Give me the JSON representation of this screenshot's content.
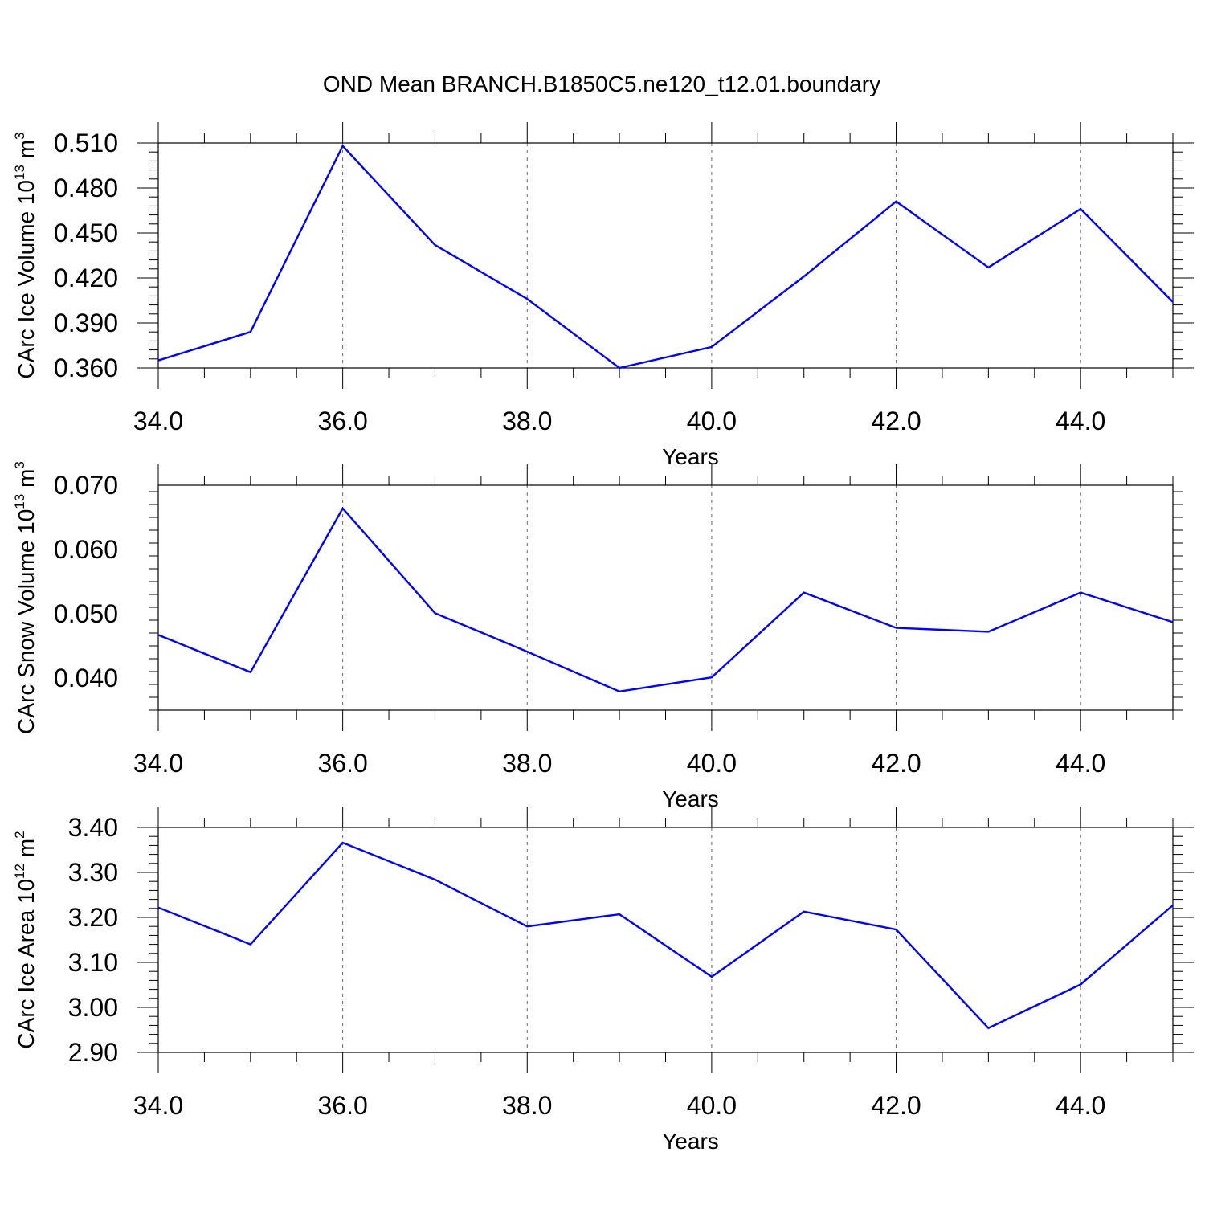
{
  "title": "OND Mean BRANCH.B1850C5.ne120_t12.01.boundary",
  "colors": {
    "series": "#0000ff",
    "axis": "#000000",
    "grid": "#666666"
  },
  "chart_data": [
    {
      "type": "line",
      "title": "",
      "xlabel": "Years",
      "ylabel": {
        "prefix": "CArc Ice Volume 10",
        "exponent": "13",
        "unit": " m",
        "unit_exponent": "3"
      },
      "x": [
        34,
        35,
        36,
        37,
        38,
        39,
        40,
        41,
        42,
        43,
        44,
        45
      ],
      "xlim": [
        34,
        45
      ],
      "xticks": [
        "34.0",
        "36.0",
        "38.0",
        "40.0",
        "42.0",
        "44.0"
      ],
      "ylim": [
        0.36,
        0.51
      ],
      "yticks": [
        "0.360",
        "0.390",
        "0.420",
        "0.450",
        "0.480",
        "0.510"
      ],
      "series": [
        {
          "values": [
            0.365,
            0.384,
            0.508,
            0.442,
            0.406,
            0.36,
            0.374,
            0.421,
            0.471,
            0.427,
            0.466,
            0.404
          ]
        }
      ],
      "grid": "x-dashed",
      "legend": "none"
    },
    {
      "type": "line",
      "title": "",
      "xlabel": "Years",
      "ylabel": {
        "prefix": "CArc Snow Volume 10",
        "exponent": "13",
        "unit": " m",
        "unit_exponent": "3"
      },
      "x": [
        34,
        35,
        36,
        37,
        38,
        39,
        40,
        41,
        42,
        43,
        44,
        45
      ],
      "xlim": [
        34,
        45
      ],
      "xticks": [
        "34.0",
        "36.0",
        "38.0",
        "40.0",
        "42.0",
        "44.0"
      ],
      "ylim": [
        0.035,
        0.07
      ],
      "yticks": [
        "0.040",
        "0.050",
        "0.060",
        "0.070"
      ],
      "series": [
        {
          "values": [
            0.0467,
            0.0409,
            0.0664,
            0.0501,
            0.0441,
            0.0379,
            0.0401,
            0.0533,
            0.0478,
            0.0472,
            0.0533,
            0.0487
          ]
        }
      ],
      "grid": "x-dashed",
      "legend": "none"
    },
    {
      "type": "line",
      "title": "",
      "xlabel": "Years",
      "ylabel": {
        "prefix": "CArc Ice Area 10",
        "exponent": "12",
        "unit": " m",
        "unit_exponent": "2"
      },
      "x": [
        34,
        35,
        36,
        37,
        38,
        39,
        40,
        41,
        42,
        43,
        44,
        45
      ],
      "xlim": [
        34,
        45
      ],
      "xticks": [
        "34.0",
        "36.0",
        "38.0",
        "40.0",
        "42.0",
        "44.0"
      ],
      "ylim": [
        2.9,
        3.4
      ],
      "yticks": [
        "2.90",
        "3.00",
        "3.10",
        "3.20",
        "3.30",
        "3.40"
      ],
      "series": [
        {
          "values": [
            3.222,
            3.14,
            3.366,
            3.284,
            3.18,
            3.207,
            3.068,
            3.213,
            3.173,
            2.954,
            3.051,
            3.227
          ]
        }
      ],
      "grid": "x-dashed",
      "legend": "none"
    }
  ]
}
